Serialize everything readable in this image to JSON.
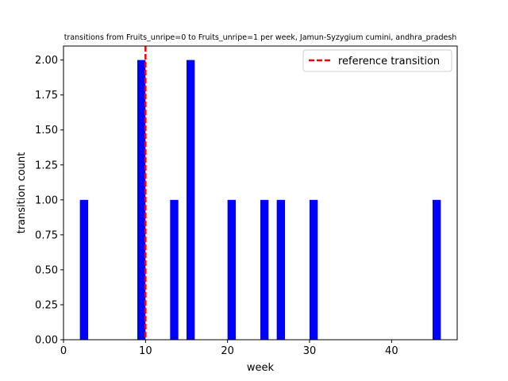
{
  "chart_data": {
    "type": "bar",
    "title": "transitions from Fruits_unripe=0 to Fruits_unripe=1 per week, Jamun-Syzygium cumini, andhra_pradesh",
    "xlabel": "week",
    "ylabel": "transition count",
    "xlim": [
      0,
      48
    ],
    "ylim": [
      0,
      2.1
    ],
    "x_ticks": [
      0,
      10,
      20,
      30,
      40
    ],
    "x_tick_labels": [
      "0",
      "10",
      "20",
      "30",
      "40"
    ],
    "y_ticks": [
      0,
      0.25,
      0.5,
      0.75,
      1.0,
      1.25,
      1.5,
      1.75,
      2.0
    ],
    "y_tick_labels": [
      "0.00",
      "0.25",
      "0.50",
      "0.75",
      "1.00",
      "1.25",
      "1.50",
      "1.75",
      "2.00"
    ],
    "grid": false,
    "bar_color": "#0000ff",
    "bars": [
      {
        "week": 2.5,
        "count": 1
      },
      {
        "week": 9.5,
        "count": 2
      },
      {
        "week": 13.5,
        "count": 1
      },
      {
        "week": 15.5,
        "count": 2
      },
      {
        "week": 20.5,
        "count": 1
      },
      {
        "week": 24.5,
        "count": 1
      },
      {
        "week": 26.5,
        "count": 1
      },
      {
        "week": 30.5,
        "count": 1
      },
      {
        "week": 45.5,
        "count": 1
      }
    ],
    "reference_line": {
      "x": 10,
      "label": "reference transition",
      "color": "#ff0000",
      "style": "dashed"
    },
    "legend": {
      "placement": "top-right",
      "entries": [
        "reference transition"
      ]
    }
  }
}
